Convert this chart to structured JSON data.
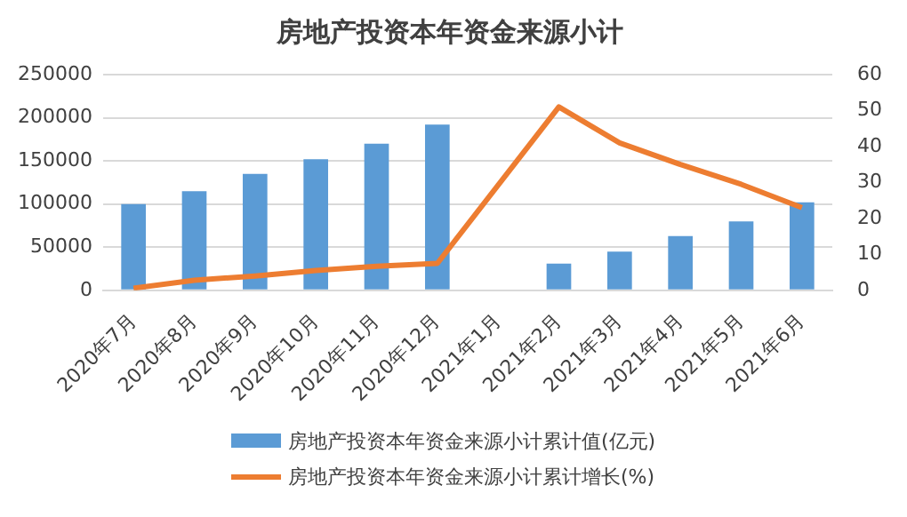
{
  "chart_data": {
    "type": "bar",
    "title": "房地产投资本年资金来源小计",
    "categories": [
      "2020年7月",
      "2020年8月",
      "2020年9月",
      "2020年10月",
      "2020年11月",
      "2020年12月",
      "2021年1月",
      "2021年2月",
      "2021年3月",
      "2021年4月",
      "2021年5月",
      "2021年6月"
    ],
    "series": [
      {
        "name": "房地产投资本年资金来源小计累计值(亿元)",
        "color": "#5b9bd5",
        "values": [
          100000,
          115000,
          135000,
          152000,
          170000,
          192000,
          null,
          31000,
          45000,
          63000,
          80000,
          102000
        ]
      },
      {
        "name": "房地产投资本年资金来源小计累计增长(%)",
        "type": "line",
        "axis": "y2",
        "color": "#ed7d31",
        "values": [
          0.6,
          2.8,
          4,
          5.5,
          6.7,
          7.5,
          null,
          51,
          41,
          35,
          29.5,
          23
        ]
      }
    ],
    "ylim": [
      0,
      250000
    ],
    "yticks": [
      0,
      50000,
      100000,
      150000,
      200000,
      250000
    ],
    "y2lim": [
      0,
      60
    ],
    "y2ticks": [
      0,
      10,
      20,
      30,
      40,
      50,
      60
    ],
    "grid": "y",
    "legend": "bottom",
    "marker": "none"
  }
}
